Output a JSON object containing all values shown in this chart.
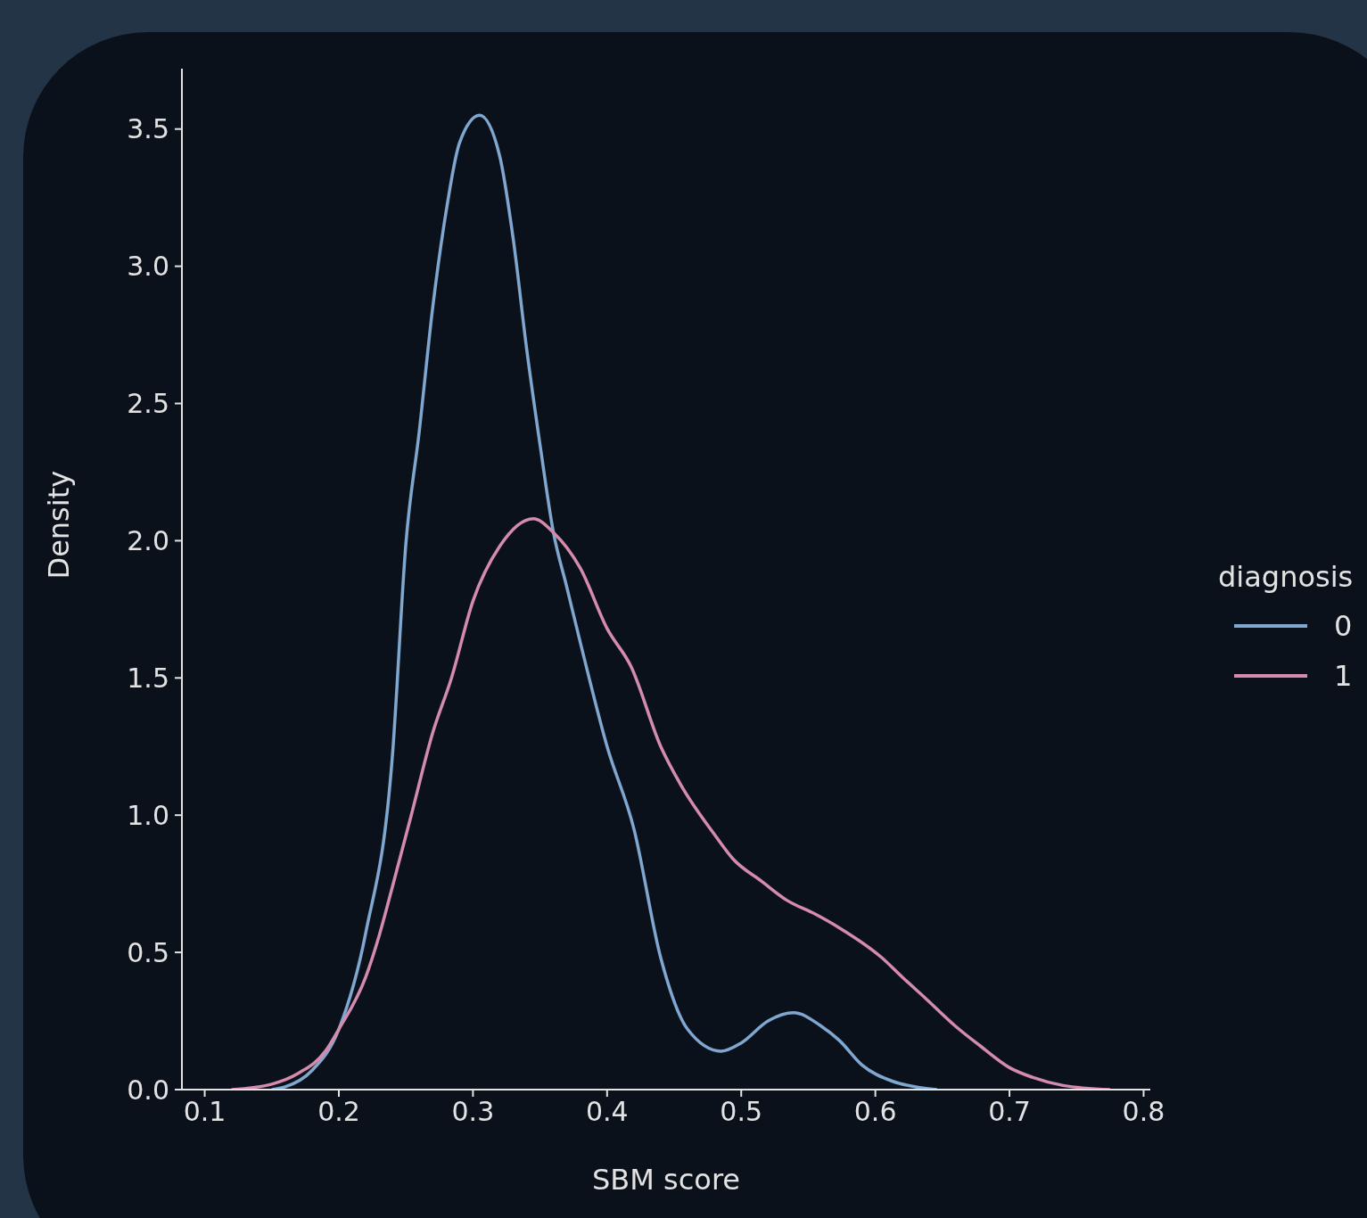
{
  "chart_data": {
    "type": "line",
    "xlabel": "SBM score",
    "ylabel": "Density",
    "legend_title": "diagnosis",
    "legend": "right",
    "xlim": [
      0.083,
      0.805
    ],
    "xticks": [
      0.1,
      0.2,
      0.3,
      0.4,
      0.5,
      0.6,
      0.7,
      0.8
    ],
    "ylim": [
      0,
      3.72
    ],
    "yticks": [
      {
        "value": 0,
        "label": "0.0"
      },
      0.5,
      {
        "value": 1,
        "label": "1.0"
      },
      1.5,
      {
        "value": 2,
        "label": "2.0"
      },
      2.5,
      {
        "value": 3,
        "label": "3.0"
      },
      3.5
    ],
    "series": [
      {
        "name": "0",
        "color": "#7fa7cf",
        "x": [
          0.15,
          0.16,
          0.18,
          0.2,
          0.22,
          0.24,
          0.25,
          0.26,
          0.27,
          0.28,
          0.29,
          0.305,
          0.32,
          0.33,
          0.34,
          0.35,
          0.36,
          0.37,
          0.38,
          0.4,
          0.42,
          0.44,
          0.46,
          0.485,
          0.5,
          0.52,
          0.539,
          0.56,
          0.573,
          0.59,
          0.613,
          0.63,
          0.646
        ],
        "values": [
          0,
          0.01,
          0.07,
          0.22,
          0.57,
          1.22,
          1.99,
          2.4,
          2.85,
          3.2,
          3.45,
          3.55,
          3.4,
          3.1,
          2.7,
          2.35,
          2.03,
          1.83,
          1.63,
          1.25,
          0.95,
          0.48,
          0.22,
          0.14,
          0.17,
          0.25,
          0.28,
          0.23,
          0.18,
          0.09,
          0.03,
          0.01,
          0
        ]
      },
      {
        "name": "1",
        "color": "#d58bad",
        "x": [
          0.12,
          0.15,
          0.17,
          0.19,
          0.2,
          0.22,
          0.23,
          0.24,
          0.254,
          0.27,
          0.284,
          0.3,
          0.32,
          0.345,
          0.36,
          0.38,
          0.4,
          0.418,
          0.44,
          0.455,
          0.48,
          0.494,
          0.515,
          0.534,
          0.555,
          0.573,
          0.605,
          0.62,
          0.638,
          0.66,
          0.678,
          0.7,
          0.717,
          0.74,
          0.775
        ],
        "values": [
          0,
          0.02,
          0.06,
          0.14,
          0.22,
          0.41,
          0.56,
          0.74,
          1.0,
          1.3,
          1.5,
          1.78,
          1.98,
          2.08,
          2.03,
          1.9,
          1.68,
          1.54,
          1.25,
          1.11,
          0.93,
          0.84,
          0.76,
          0.69,
          0.64,
          0.59,
          0.48,
          0.41,
          0.33,
          0.23,
          0.16,
          0.08,
          0.045,
          0.015,
          0
        ]
      }
    ]
  }
}
